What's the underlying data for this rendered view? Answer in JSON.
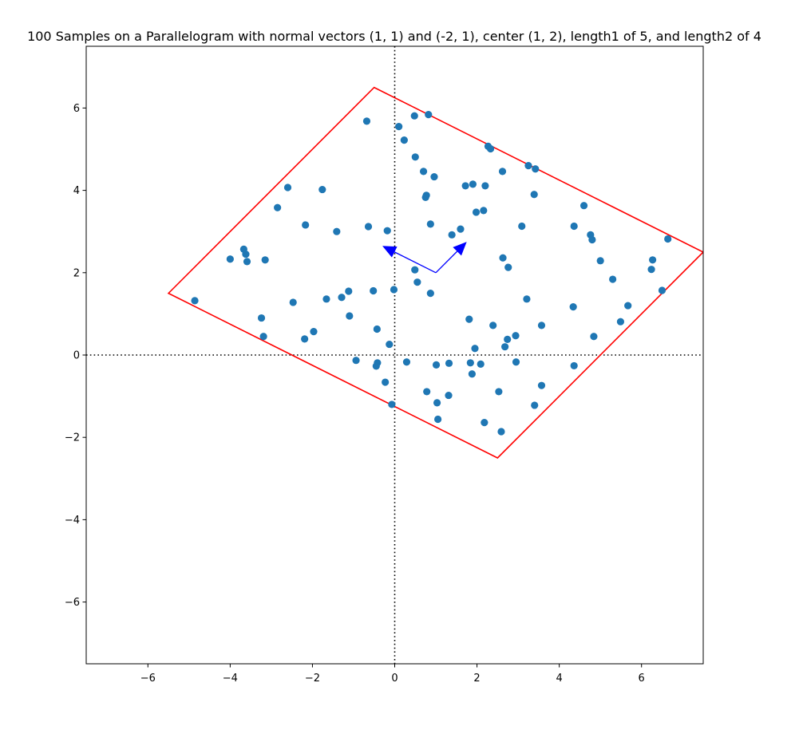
{
  "chart_data": {
    "type": "scatter",
    "title": "100 Samples on a Parallelogram with normal vectors (1, 1) and (-2, 1), center (1, 2), length1 of 5, and length2 of 4",
    "xlabel": "",
    "ylabel": "",
    "xlim": [
      -7.5,
      7.5
    ],
    "ylim": [
      -7.5,
      7.5
    ],
    "xticks": [
      -6,
      -4,
      -2,
      0,
      2,
      4,
      6
    ],
    "yticks": [
      -6,
      -4,
      -2,
      0,
      2,
      4,
      6
    ],
    "xtick_labels": [
      "−6",
      "−4",
      "−2",
      "0",
      "2",
      "4",
      "6"
    ],
    "ytick_labels": [
      "−6",
      "−4",
      "−2",
      "0",
      "2",
      "4",
      "6"
    ],
    "grid": false,
    "colors": {
      "points": "#1f77b4",
      "parallelogram": "#ff0000",
      "vectors": "#0000ff",
      "axes_lines": "#000000"
    },
    "parallelogram": [
      [
        -0.5,
        6.5
      ],
      [
        7.5,
        2.5
      ],
      [
        2.5,
        -2.5
      ],
      [
        -5.5,
        1.5
      ]
    ],
    "vectors": [
      {
        "from": [
          1,
          2
        ],
        "to": [
          1.75,
          2.75
        ]
      },
      {
        "from": [
          1,
          2
        ],
        "to": [
          -0.3,
          2.65
        ]
      }
    ],
    "reference_lines": [
      {
        "orientation": "vertical",
        "value": 0,
        "style": "dotted"
      },
      {
        "orientation": "horizontal",
        "value": 0,
        "style": "dotted"
      }
    ],
    "points": [
      [
        -0.68,
        5.68
      ],
      [
        0.48,
        5.81
      ],
      [
        0.82,
        5.84
      ],
      [
        0.1,
        5.55
      ],
      [
        0.23,
        5.22
      ],
      [
        0.5,
        4.81
      ],
      [
        0.7,
        4.46
      ],
      [
        0.96,
        4.33
      ],
      [
        2.27,
        5.07
      ],
      [
        2.33,
        5.01
      ],
      [
        3.25,
        4.6
      ],
      [
        3.42,
        4.52
      ],
      [
        2.62,
        4.46
      ],
      [
        -2.6,
        4.07
      ],
      [
        -1.76,
        4.02
      ],
      [
        0.77,
        3.88
      ],
      [
        0.75,
        3.83
      ],
      [
        1.72,
        4.11
      ],
      [
        1.9,
        4.15
      ],
      [
        2.2,
        4.11
      ],
      [
        3.39,
        3.9
      ],
      [
        -2.85,
        3.58
      ],
      [
        1.98,
        3.47
      ],
      [
        2.16,
        3.51
      ],
      [
        4.6,
        3.63
      ],
      [
        -2.17,
        3.16
      ],
      [
        -1.41,
        3.0
      ],
      [
        -0.64,
        3.12
      ],
      [
        -0.18,
        3.02
      ],
      [
        0.87,
        3.18
      ],
      [
        1.6,
        3.06
      ],
      [
        1.39,
        2.92
      ],
      [
        3.09,
        3.13
      ],
      [
        4.36,
        3.13
      ],
      [
        4.76,
        2.92
      ],
      [
        4.8,
        2.8
      ],
      [
        6.64,
        2.82
      ],
      [
        -3.67,
        2.57
      ],
      [
        -3.62,
        2.45
      ],
      [
        -4.0,
        2.33
      ],
      [
        -3.59,
        2.27
      ],
      [
        -3.15,
        2.31
      ],
      [
        2.63,
        2.36
      ],
      [
        2.76,
        2.13
      ],
      [
        5.0,
        2.29
      ],
      [
        6.27,
        2.31
      ],
      [
        6.24,
        2.08
      ],
      [
        0.49,
        2.07
      ],
      [
        5.3,
        1.84
      ],
      [
        0.55,
        1.77
      ],
      [
        -1.12,
        1.55
      ],
      [
        -0.52,
        1.56
      ],
      [
        -0.02,
        1.59
      ],
      [
        0.87,
        1.5
      ],
      [
        6.5,
        1.57
      ],
      [
        -4.86,
        1.32
      ],
      [
        -2.47,
        1.28
      ],
      [
        -1.66,
        1.36
      ],
      [
        -1.29,
        1.4
      ],
      [
        3.21,
        1.36
      ],
      [
        4.34,
        1.17
      ],
      [
        5.67,
        1.2
      ],
      [
        -3.24,
        0.9
      ],
      [
        -1.1,
        0.95
      ],
      [
        1.81,
        0.87
      ],
      [
        2.39,
        0.72
      ],
      [
        3.57,
        0.72
      ],
      [
        5.49,
        0.81
      ],
      [
        -3.19,
        0.45
      ],
      [
        -2.19,
        0.39
      ],
      [
        -1.97,
        0.57
      ],
      [
        -0.43,
        0.63
      ],
      [
        2.94,
        0.47
      ],
      [
        2.74,
        0.38
      ],
      [
        4.84,
        0.45
      ],
      [
        -0.13,
        0.26
      ],
      [
        1.95,
        0.16
      ],
      [
        2.68,
        0.2
      ],
      [
        -0.94,
        -0.13
      ],
      [
        -0.42,
        -0.19
      ],
      [
        -0.45,
        -0.27
      ],
      [
        0.29,
        -0.17
      ],
      [
        1.01,
        -0.24
      ],
      [
        1.32,
        -0.2
      ],
      [
        1.84,
        -0.19
      ],
      [
        2.09,
        -0.22
      ],
      [
        2.95,
        -0.17
      ],
      [
        4.36,
        -0.26
      ],
      [
        1.88,
        -0.46
      ],
      [
        -0.23,
        -0.66
      ],
      [
        3.57,
        -0.74
      ],
      [
        0.78,
        -0.89
      ],
      [
        1.31,
        -0.98
      ],
      [
        2.53,
        -0.89
      ],
      [
        -0.07,
        -1.2
      ],
      [
        1.03,
        -1.16
      ],
      [
        3.4,
        -1.22
      ],
      [
        1.05,
        -1.56
      ],
      [
        2.18,
        -1.64
      ],
      [
        2.59,
        -1.86
      ]
    ]
  }
}
